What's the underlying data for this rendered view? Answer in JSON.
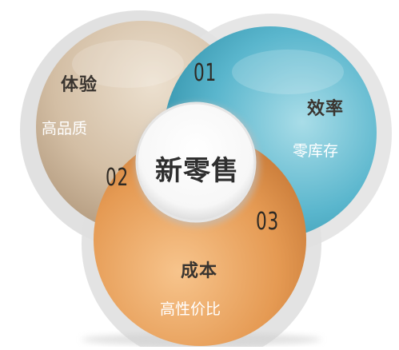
{
  "center": {
    "label": "新零售"
  },
  "segments": [
    {
      "id": "experience",
      "title": "体验",
      "subtitle": "高品质",
      "number": "01",
      "color": "#c8b49a"
    },
    {
      "id": "cost",
      "title": "成本",
      "subtitle": "高性价比",
      "number": "02",
      "color": "#e3954e"
    },
    {
      "id": "efficiency",
      "title": "效率",
      "subtitle": "零库存",
      "number": "03",
      "color": "#4fb0c8"
    }
  ]
}
